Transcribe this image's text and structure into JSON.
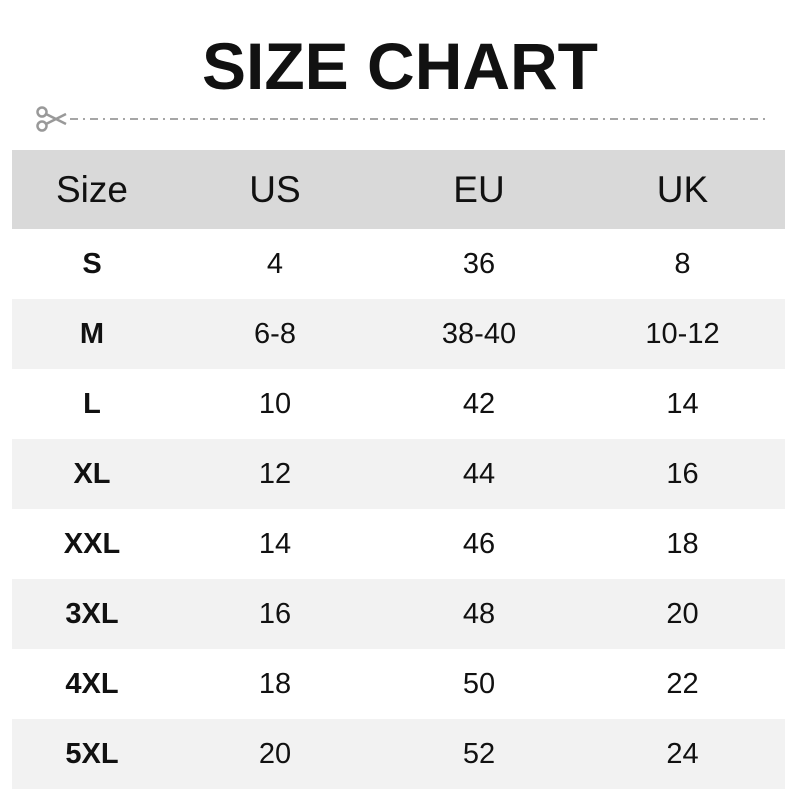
{
  "title": "SIZE CHART",
  "icons": {
    "cut": "scissors-icon"
  },
  "colors": {
    "header_bg": "#d9d9d9",
    "alt_row_bg": "#f2f2f2",
    "cut_line": "#999999"
  },
  "table": {
    "headers": [
      "Size",
      "US",
      "EU",
      "UK"
    ],
    "rows": [
      [
        "S",
        "4",
        "36",
        "8"
      ],
      [
        "M",
        "6-8",
        "38-40",
        "10-12"
      ],
      [
        "L",
        "10",
        "42",
        "14"
      ],
      [
        "XL",
        "12",
        "44",
        "16"
      ],
      [
        "XXL",
        "14",
        "46",
        "18"
      ],
      [
        "3XL",
        "16",
        "48",
        "20"
      ],
      [
        "4XL",
        "18",
        "50",
        "22"
      ],
      [
        "5XL",
        "20",
        "52",
        "24"
      ]
    ]
  }
}
